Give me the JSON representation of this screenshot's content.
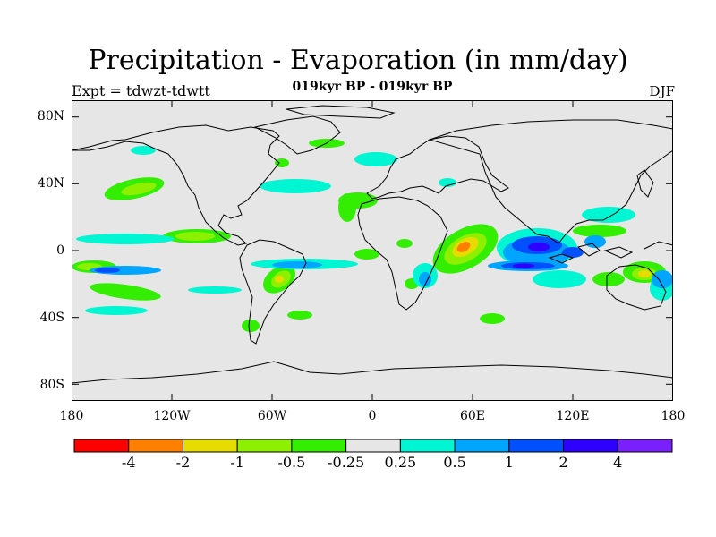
{
  "title": "Precipitation - Evaporation (in mm/day)",
  "subtitle": "019kyr BP - 019kyr BP",
  "left_label": "Expt = tdwzt-tdwtt",
  "right_label": "DJF",
  "lat_ticks": [
    "80N",
    "40N",
    "0",
    "40S",
    "80S"
  ],
  "lon_ticks": [
    "180",
    "120W",
    "60W",
    "0",
    "60E",
    "120E",
    "180"
  ],
  "colorbar": {
    "colors": [
      "#ff0000",
      "#ff8000",
      "#e6dc00",
      "#8cf000",
      "#33ee00",
      "#e6e6e6",
      "#00f5d2",
      "#00a5ff",
      "#0050ff",
      "#2d00ff",
      "#7a20ff"
    ],
    "labels": [
      "-4",
      "-2",
      "-1",
      "-0.5",
      "-0.25",
      "0.25",
      "0.5",
      "1",
      "2",
      "4"
    ]
  }
}
